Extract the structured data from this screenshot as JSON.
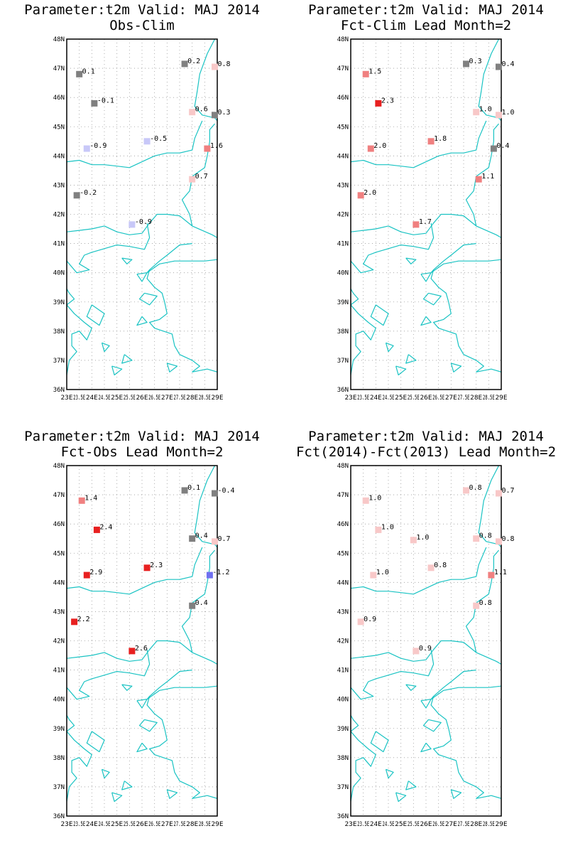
{
  "map": {
    "lat_labels": [
      "48N",
      "47N",
      "46N",
      "45N",
      "44N",
      "43N",
      "42N",
      "41N",
      "40N",
      "39N",
      "38N",
      "37N",
      "36N"
    ],
    "lon_labels": [
      "23E",
      "23.5E",
      "24E",
      "24.5E",
      "25E",
      "25.5E",
      "26E",
      "26.5E",
      "27E",
      "27.5E",
      "28E",
      "28.5E",
      "29E"
    ],
    "lat_range": [
      36,
      48
    ],
    "lon_range": [
      23,
      29
    ],
    "colors": {
      "coast": "#19c3c3",
      "neutral": "#808080",
      "pos_weak": "#f8c8c8",
      "pos_mid": "#f08080",
      "pos_strong": "#e82020",
      "neg_weak": "#c8c8f8",
      "neg_strong": "#7070f0"
    }
  },
  "panels": [
    {
      "title1": "Parameter:t2m Valid: MAJ 2014",
      "title2": "Obs-Clim",
      "stations": [
        {
          "lon": 23.5,
          "lat": 46.8,
          "label": "0.1",
          "color": "neutral"
        },
        {
          "lon": 27.7,
          "lat": 47.15,
          "label": "0.2",
          "color": "neutral"
        },
        {
          "lon": 28.9,
          "lat": 47.05,
          "label": "0.8",
          "color": "pos_weak"
        },
        {
          "lon": 24.1,
          "lat": 45.8,
          "label": "-0.1",
          "color": "neutral"
        },
        {
          "lon": 28.0,
          "lat": 45.5,
          "label": "0.6",
          "color": "pos_weak"
        },
        {
          "lon": 28.9,
          "lat": 45.4,
          "label": "0.3",
          "color": "neutral"
        },
        {
          "lon": 23.8,
          "lat": 44.25,
          "label": "-0.9",
          "color": "neg_weak"
        },
        {
          "lon": 26.2,
          "lat": 44.5,
          "label": "-0.5",
          "color": "neg_weak"
        },
        {
          "lon": 28.6,
          "lat": 44.25,
          "label": "1.6",
          "color": "pos_mid"
        },
        {
          "lon": 28.0,
          "lat": 43.2,
          "label": "0.7",
          "color": "pos_weak"
        },
        {
          "lon": 23.4,
          "lat": 42.65,
          "label": "-0.2",
          "color": "neutral"
        },
        {
          "lon": 25.6,
          "lat": 41.65,
          "label": "-0.9",
          "color": "neg_weak"
        }
      ]
    },
    {
      "title1": "Parameter:t2m Valid: MAJ 2014",
      "title2": "Fct-Clim Lead Month=2",
      "stations": [
        {
          "lon": 23.6,
          "lat": 46.8,
          "label": "1.5",
          "color": "pos_mid"
        },
        {
          "lon": 27.6,
          "lat": 47.15,
          "label": "0.3",
          "color": "neutral"
        },
        {
          "lon": 28.9,
          "lat": 47.05,
          "label": "0.4",
          "color": "neutral"
        },
        {
          "lon": 24.1,
          "lat": 45.8,
          "label": "2.3",
          "color": "pos_strong"
        },
        {
          "lon": 28.0,
          "lat": 45.5,
          "label": "1.0",
          "color": "pos_weak"
        },
        {
          "lon": 28.9,
          "lat": 45.4,
          "label": "1.0",
          "color": "pos_weak"
        },
        {
          "lon": 23.8,
          "lat": 44.25,
          "label": "2.0",
          "color": "pos_mid"
        },
        {
          "lon": 26.2,
          "lat": 44.5,
          "label": "1.8",
          "color": "pos_mid"
        },
        {
          "lon": 28.7,
          "lat": 44.25,
          "label": "0.4",
          "color": "neutral"
        },
        {
          "lon": 28.1,
          "lat": 43.2,
          "label": "1.1",
          "color": "pos_mid"
        },
        {
          "lon": 23.4,
          "lat": 42.65,
          "label": "2.0",
          "color": "pos_mid"
        },
        {
          "lon": 25.6,
          "lat": 41.65,
          "label": "1.7",
          "color": "pos_mid"
        }
      ]
    },
    {
      "title1": "Parameter:t2m Valid: MAJ 2014",
      "title2": "Fct-Obs Lead Month=2",
      "stations": [
        {
          "lon": 23.6,
          "lat": 46.8,
          "label": "1.4",
          "color": "pos_mid"
        },
        {
          "lon": 27.7,
          "lat": 47.15,
          "label": "0.1",
          "color": "neutral"
        },
        {
          "lon": 28.9,
          "lat": 47.05,
          "label": "-0.4",
          "color": "neutral"
        },
        {
          "lon": 24.2,
          "lat": 45.8,
          "label": "2.4",
          "color": "pos_strong"
        },
        {
          "lon": 28.0,
          "lat": 45.5,
          "label": "0.4",
          "color": "neutral"
        },
        {
          "lon": 28.9,
          "lat": 45.4,
          "label": "0.7",
          "color": "pos_weak"
        },
        {
          "lon": 23.8,
          "lat": 44.25,
          "label": "2.9",
          "color": "pos_strong"
        },
        {
          "lon": 26.2,
          "lat": 44.5,
          "label": "2.3",
          "color": "pos_strong"
        },
        {
          "lon": 28.7,
          "lat": 44.25,
          "label": "-1.2",
          "color": "neg_strong"
        },
        {
          "lon": 28.0,
          "lat": 43.2,
          "label": "0.4",
          "color": "neutral"
        },
        {
          "lon": 23.3,
          "lat": 42.65,
          "label": "2.2",
          "color": "pos_strong"
        },
        {
          "lon": 25.6,
          "lat": 41.65,
          "label": "2.6",
          "color": "pos_strong"
        }
      ]
    },
    {
      "title1": "Parameter:t2m Valid: MAJ 2014",
      "title2": "Fct(2014)-Fct(2013) Lead Month=2",
      "stations": [
        {
          "lon": 23.6,
          "lat": 46.8,
          "label": "1.0",
          "color": "pos_weak"
        },
        {
          "lon": 27.6,
          "lat": 47.15,
          "label": "0.8",
          "color": "pos_weak"
        },
        {
          "lon": 28.9,
          "lat": 47.05,
          "label": "0.7",
          "color": "pos_weak"
        },
        {
          "lon": 24.1,
          "lat": 45.8,
          "label": "1.0",
          "color": "pos_weak"
        },
        {
          "lon": 25.5,
          "lat": 45.45,
          "label": "1.0",
          "color": "pos_weak"
        },
        {
          "lon": 28.0,
          "lat": 45.5,
          "label": "0.8",
          "color": "pos_weak"
        },
        {
          "lon": 28.9,
          "lat": 45.4,
          "label": "0.8",
          "color": "pos_weak"
        },
        {
          "lon": 23.9,
          "lat": 44.25,
          "label": "1.0",
          "color": "pos_weak"
        },
        {
          "lon": 26.2,
          "lat": 44.5,
          "label": "0.8",
          "color": "pos_weak"
        },
        {
          "lon": 28.6,
          "lat": 44.25,
          "label": "1.1",
          "color": "pos_mid"
        },
        {
          "lon": 28.0,
          "lat": 43.2,
          "label": "0.8",
          "color": "pos_weak"
        },
        {
          "lon": 23.4,
          "lat": 42.65,
          "label": "0.9",
          "color": "pos_weak"
        },
        {
          "lon": 25.6,
          "lat": 41.65,
          "label": "0.9",
          "color": "pos_weak"
        }
      ]
    }
  ]
}
